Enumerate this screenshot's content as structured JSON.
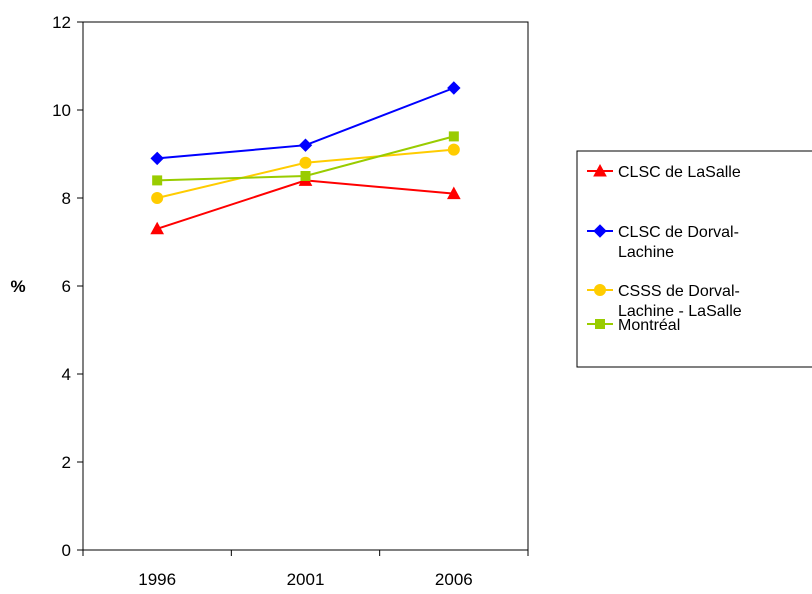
{
  "chart_data": {
    "type": "line",
    "title": "",
    "xlabel": "",
    "ylabel": "%",
    "categories": [
      "1996",
      "2001",
      "2006"
    ],
    "ylim": [
      0,
      12
    ],
    "yticks": [
      "0",
      "2",
      "4",
      "6",
      "8",
      "10",
      "12"
    ],
    "grid": false,
    "legend_position": "right",
    "series": [
      {
        "name_lines": [
          "CLSC de LaSalle"
        ],
        "values": [
          7.3,
          8.4,
          8.1
        ],
        "color": "#ff0000",
        "marker": "triangle"
      },
      {
        "name_lines": [
          "CLSC de Dorval-",
          "Lachine"
        ],
        "values": [
          8.9,
          9.2,
          10.5
        ],
        "color": "#0000ff",
        "marker": "diamond"
      },
      {
        "name_lines": [
          "CSSS de Dorval-",
          "Lachine - LaSalle"
        ],
        "values": [
          8.0,
          8.8,
          9.1
        ],
        "color": "#ffcc00",
        "marker": "circle"
      },
      {
        "name_lines": [
          "Montréal"
        ],
        "values": [
          8.4,
          8.5,
          9.4
        ],
        "color": "#99cc00",
        "marker": "square"
      }
    ]
  }
}
